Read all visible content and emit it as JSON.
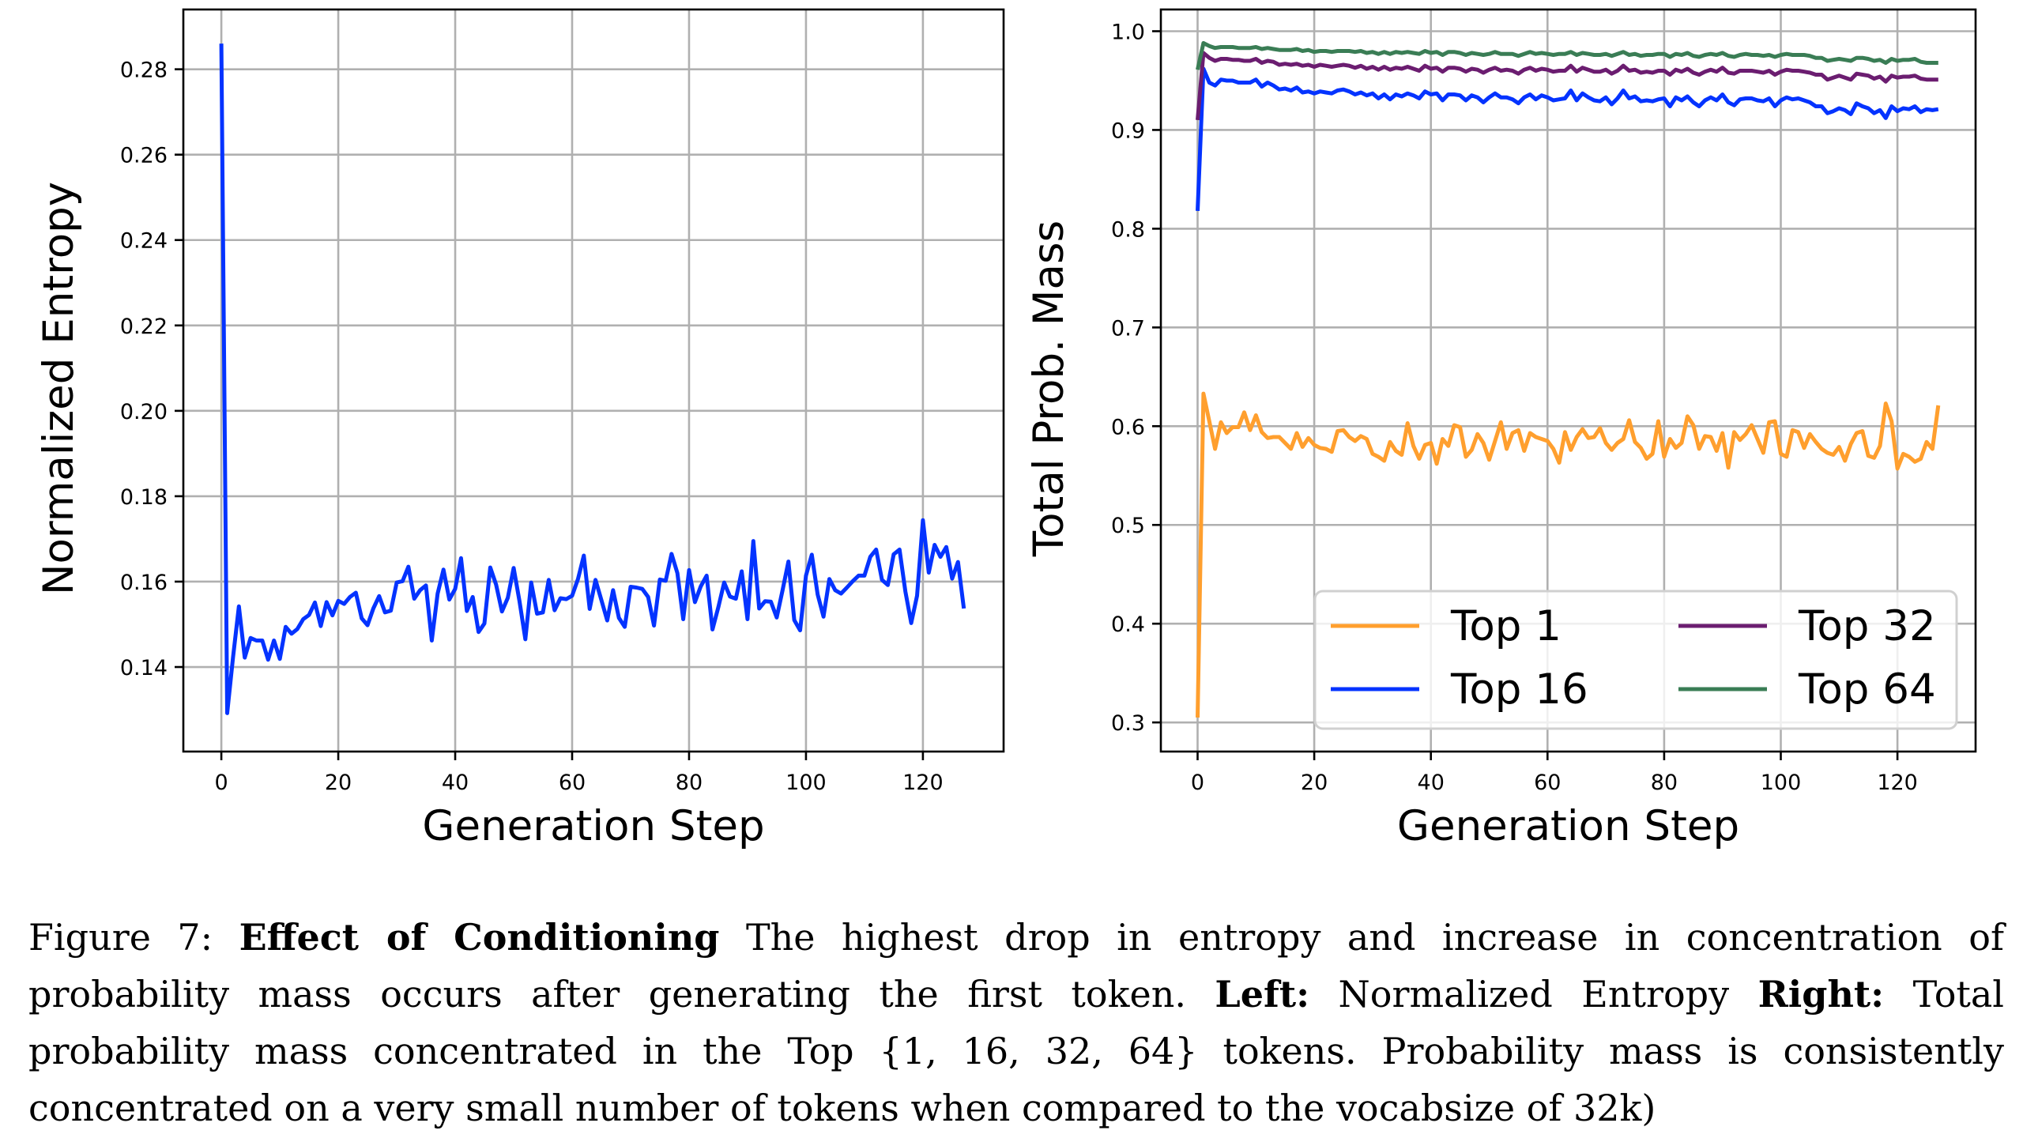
{
  "chart_data": [
    {
      "type": "line",
      "title": "",
      "xlabel": "Generation Step",
      "ylabel": "Normalized Entropy",
      "xlim": [
        -6.5,
        133.8
      ],
      "ylim": [
        0.1202,
        0.294
      ],
      "xticks": [
        0,
        20,
        40,
        60,
        80,
        100,
        120
      ],
      "xtick_labels": [
        "0",
        "20",
        "40",
        "60",
        "80",
        "100",
        "120"
      ],
      "yticks": [
        0.14,
        0.16,
        0.18,
        0.2,
        0.22,
        0.24,
        0.26,
        0.28
      ],
      "ytick_labels": [
        "0.14",
        "0.16",
        "0.18",
        "0.20",
        "0.22",
        "0.24",
        "0.26",
        "0.28"
      ],
      "grid": true,
      "legend": null,
      "series": [
        {
          "name": "Normalized Entropy",
          "color": "#0433ff",
          "values": [
            0.286,
            0.1292,
            0.1423,
            0.1542,
            0.1422,
            0.1468,
            0.1462,
            0.1462,
            0.1417,
            0.1462,
            0.1419,
            0.1494,
            0.1478,
            0.1489,
            0.1512,
            0.1522,
            0.1551,
            0.1496,
            0.1552,
            0.1521,
            0.1555,
            0.1548,
            0.1564,
            0.1574,
            0.1514,
            0.1498,
            0.1537,
            0.1566,
            0.1528,
            0.1532,
            0.1598,
            0.1601,
            0.1635,
            0.156,
            0.158,
            0.1591,
            0.1462,
            0.1572,
            0.1628,
            0.1558,
            0.1583,
            0.1655,
            0.1531,
            0.1564,
            0.1482,
            0.1502,
            0.1633,
            0.1593,
            0.153,
            0.1562,
            0.1632,
            0.1554,
            0.1465,
            0.1598,
            0.1525,
            0.1528,
            0.1604,
            0.1533,
            0.1561,
            0.1559,
            0.1567,
            0.1606,
            0.1661,
            0.1536,
            0.1604,
            0.1557,
            0.1509,
            0.158,
            0.1515,
            0.1494,
            0.1588,
            0.1586,
            0.1583,
            0.1564,
            0.1497,
            0.1605,
            0.1602,
            0.1665,
            0.162,
            0.1512,
            0.1627,
            0.1552,
            0.1589,
            0.1614,
            0.1488,
            0.154,
            0.1598,
            0.1565,
            0.156,
            0.1624,
            0.1512,
            0.1695,
            0.1537,
            0.1554,
            0.1553,
            0.1516,
            0.158,
            0.1647,
            0.151,
            0.1486,
            0.1614,
            0.1663,
            0.157,
            0.1518,
            0.1606,
            0.158,
            0.1572,
            0.1586,
            0.1601,
            0.1614,
            0.1614,
            0.1658,
            0.1675,
            0.1604,
            0.1592,
            0.1664,
            0.1675,
            0.1577,
            0.1503,
            0.1567,
            0.1744,
            0.1621,
            0.1686,
            0.1658,
            0.1681,
            0.1607,
            0.1646,
            0.1537
          ]
        }
      ]
    },
    {
      "type": "line",
      "title": "",
      "xlabel": "Generation Step",
      "ylabel": "Total Prob. Mass",
      "xlim": [
        -6.3,
        133.4
      ],
      "ylim": [
        0.2705,
        1.022
      ],
      "xticks": [
        0,
        20,
        40,
        60,
        80,
        100,
        120
      ],
      "xtick_labels": [
        "0",
        "20",
        "40",
        "60",
        "80",
        "100",
        "120"
      ],
      "yticks": [
        0.3,
        0.4,
        0.5,
        0.6,
        0.7,
        0.8,
        0.9,
        1.0
      ],
      "ytick_labels": [
        "0.3",
        "0.4",
        "0.5",
        "0.6",
        "0.7",
        "0.8",
        "0.9",
        "1.0"
      ],
      "grid": true,
      "legend": "lower-right",
      "legend_columns": 2,
      "series": [
        {
          "name": "Top 1",
          "color": "#ff9f2e",
          "values": [
            0.305,
            0.633,
            0.605,
            0.577,
            0.604,
            0.593,
            0.599,
            0.599,
            0.614,
            0.596,
            0.611,
            0.594,
            0.588,
            0.589,
            0.589,
            0.583,
            0.577,
            0.593,
            0.579,
            0.588,
            0.581,
            0.578,
            0.577,
            0.574,
            0.595,
            0.596,
            0.589,
            0.585,
            0.59,
            0.587,
            0.572,
            0.569,
            0.565,
            0.584,
            0.575,
            0.571,
            0.603,
            0.58,
            0.567,
            0.581,
            0.583,
            0.562,
            0.587,
            0.58,
            0.601,
            0.599,
            0.569,
            0.576,
            0.592,
            0.583,
            0.566,
            0.585,
            0.604,
            0.577,
            0.593,
            0.596,
            0.575,
            0.593,
            0.589,
            0.587,
            0.585,
            0.577,
            0.563,
            0.594,
            0.576,
            0.589,
            0.597,
            0.588,
            0.589,
            0.598,
            0.583,
            0.576,
            0.583,
            0.587,
            0.606,
            0.584,
            0.578,
            0.567,
            0.572,
            0.605,
            0.569,
            0.587,
            0.578,
            0.583,
            0.61,
            0.601,
            0.577,
            0.59,
            0.589,
            0.575,
            0.593,
            0.558,
            0.594,
            0.586,
            0.592,
            0.601,
            0.587,
            0.573,
            0.604,
            0.605,
            0.572,
            0.569,
            0.596,
            0.594,
            0.578,
            0.592,
            0.584,
            0.577,
            0.573,
            0.571,
            0.579,
            0.565,
            0.582,
            0.593,
            0.595,
            0.57,
            0.568,
            0.58,
            0.623,
            0.605,
            0.557,
            0.572,
            0.569,
            0.564,
            0.567,
            0.584,
            0.577,
            0.621
          ]
        },
        {
          "name": "Top 16",
          "color": "#0433ff",
          "values": [
            0.818,
            0.962,
            0.948,
            0.945,
            0.951,
            0.95,
            0.95,
            0.948,
            0.948,
            0.948,
            0.951,
            0.944,
            0.948,
            0.945,
            0.941,
            0.942,
            0.94,
            0.943,
            0.938,
            0.939,
            0.937,
            0.939,
            0.938,
            0.937,
            0.94,
            0.941,
            0.939,
            0.936,
            0.938,
            0.935,
            0.937,
            0.932,
            0.936,
            0.931,
            0.936,
            0.934,
            0.937,
            0.935,
            0.932,
            0.939,
            0.936,
            0.937,
            0.93,
            0.936,
            0.936,
            0.935,
            0.93,
            0.935,
            0.933,
            0.928,
            0.933,
            0.937,
            0.933,
            0.933,
            0.931,
            0.927,
            0.933,
            0.936,
            0.931,
            0.935,
            0.933,
            0.93,
            0.931,
            0.932,
            0.94,
            0.93,
            0.937,
            0.933,
            0.93,
            0.929,
            0.933,
            0.926,
            0.932,
            0.94,
            0.932,
            0.934,
            0.929,
            0.93,
            0.929,
            0.931,
            0.932,
            0.924,
            0.933,
            0.93,
            0.934,
            0.928,
            0.924,
            0.93,
            0.933,
            0.93,
            0.936,
            0.928,
            0.925,
            0.931,
            0.932,
            0.932,
            0.93,
            0.929,
            0.932,
            0.924,
            0.93,
            0.933,
            0.931,
            0.932,
            0.93,
            0.928,
            0.924,
            0.924,
            0.917,
            0.919,
            0.922,
            0.92,
            0.916,
            0.927,
            0.924,
            0.922,
            0.917,
            0.92,
            0.912,
            0.924,
            0.919,
            0.922,
            0.921,
            0.924,
            0.918,
            0.921,
            0.92,
            0.921
          ]
        },
        {
          "name": "Top 32",
          "color": "#6b1d70",
          "values": [
            0.91,
            0.978,
            0.973,
            0.97,
            0.972,
            0.972,
            0.971,
            0.971,
            0.97,
            0.97,
            0.972,
            0.968,
            0.97,
            0.969,
            0.966,
            0.967,
            0.966,
            0.967,
            0.965,
            0.966,
            0.964,
            0.966,
            0.965,
            0.964,
            0.965,
            0.966,
            0.965,
            0.963,
            0.965,
            0.962,
            0.964,
            0.961,
            0.964,
            0.961,
            0.963,
            0.962,
            0.964,
            0.962,
            0.96,
            0.965,
            0.962,
            0.963,
            0.959,
            0.963,
            0.963,
            0.962,
            0.959,
            0.962,
            0.961,
            0.958,
            0.961,
            0.963,
            0.96,
            0.961,
            0.96,
            0.957,
            0.961,
            0.963,
            0.96,
            0.962,
            0.961,
            0.959,
            0.96,
            0.96,
            0.965,
            0.959,
            0.963,
            0.961,
            0.959,
            0.959,
            0.961,
            0.957,
            0.96,
            0.965,
            0.96,
            0.961,
            0.958,
            0.959,
            0.958,
            0.96,
            0.96,
            0.956,
            0.961,
            0.959,
            0.962,
            0.958,
            0.956,
            0.959,
            0.961,
            0.959,
            0.963,
            0.958,
            0.957,
            0.96,
            0.96,
            0.96,
            0.959,
            0.958,
            0.96,
            0.956,
            0.959,
            0.961,
            0.96,
            0.96,
            0.959,
            0.958,
            0.956,
            0.956,
            0.951,
            0.953,
            0.955,
            0.953,
            0.951,
            0.957,
            0.956,
            0.955,
            0.952,
            0.954,
            0.949,
            0.955,
            0.953,
            0.954,
            0.954,
            0.955,
            0.952,
            0.951,
            0.951,
            0.951
          ]
        },
        {
          "name": "Top 64",
          "color": "#3a7d55",
          "values": [
            0.961,
            0.988,
            0.985,
            0.983,
            0.984,
            0.984,
            0.984,
            0.983,
            0.983,
            0.983,
            0.984,
            0.982,
            0.983,
            0.982,
            0.981,
            0.981,
            0.981,
            0.982,
            0.98,
            0.981,
            0.979,
            0.98,
            0.98,
            0.979,
            0.98,
            0.98,
            0.98,
            0.979,
            0.98,
            0.978,
            0.979,
            0.977,
            0.979,
            0.977,
            0.979,
            0.978,
            0.979,
            0.978,
            0.977,
            0.98,
            0.978,
            0.979,
            0.976,
            0.979,
            0.979,
            0.978,
            0.976,
            0.978,
            0.977,
            0.976,
            0.977,
            0.979,
            0.977,
            0.977,
            0.977,
            0.975,
            0.977,
            0.979,
            0.977,
            0.978,
            0.977,
            0.976,
            0.977,
            0.977,
            0.979,
            0.976,
            0.978,
            0.977,
            0.976,
            0.976,
            0.977,
            0.975,
            0.977,
            0.979,
            0.976,
            0.977,
            0.975,
            0.976,
            0.976,
            0.977,
            0.977,
            0.974,
            0.977,
            0.976,
            0.978,
            0.975,
            0.974,
            0.976,
            0.977,
            0.976,
            0.978,
            0.975,
            0.974,
            0.976,
            0.977,
            0.976,
            0.976,
            0.975,
            0.976,
            0.974,
            0.976,
            0.977,
            0.976,
            0.976,
            0.976,
            0.975,
            0.973,
            0.973,
            0.97,
            0.971,
            0.972,
            0.971,
            0.97,
            0.973,
            0.973,
            0.972,
            0.97,
            0.971,
            0.968,
            0.972,
            0.97,
            0.971,
            0.971,
            0.972,
            0.969,
            0.968,
            0.968,
            0.968
          ]
        }
      ]
    }
  ],
  "caption": {
    "label": "Figure 7:",
    "title": "Effect of Conditioning",
    "text1": "The highest drop in entropy and increase in concentration of probability mass occurs after generating the first token.",
    "left_label": "Left:",
    "left_text": "Normalized Entropy",
    "right_label": "Right:",
    "right_text": "Total probability mass concentrated in the Top {1, 16, 32, 64} tokens.  Probability mass is consistently concentrated on a very small number of tokens when compared to the vocabsize of 32k)"
  }
}
